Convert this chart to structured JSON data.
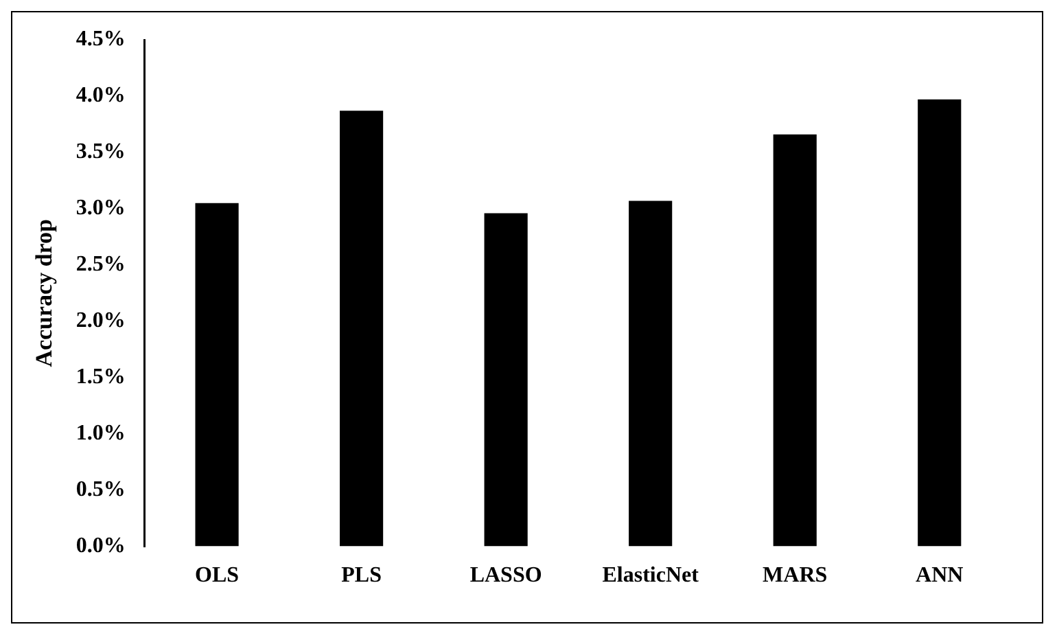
{
  "chart_data": {
    "type": "bar",
    "ylabel": "Accuracy drop",
    "categories": [
      "OLS",
      "PLS",
      "LASSO",
      "ElasticNet",
      "MARS",
      "ANN"
    ],
    "values": [
      3.05,
      3.87,
      2.96,
      3.07,
      3.66,
      3.97
    ],
    "color": "#000000",
    "ylim": [
      0,
      4.5
    ],
    "yticks": [
      {
        "value": 0,
        "label": "0.0%"
      },
      {
        "value": 0.5,
        "label": "0.5%"
      },
      {
        "value": 1,
        "label": "1.0%"
      },
      {
        "value": 1.5,
        "label": "1.5%"
      },
      {
        "value": 2,
        "label": "2.0%"
      },
      {
        "value": 2.5,
        "label": "2.5%"
      },
      {
        "value": 3,
        "label": "3.0%"
      },
      {
        "value": 3.5,
        "label": "3.5%"
      },
      {
        "value": 4,
        "label": "4.0%"
      },
      {
        "value": 4.5,
        "label": "4.5%"
      }
    ],
    "grid": false,
    "legend": false
  }
}
